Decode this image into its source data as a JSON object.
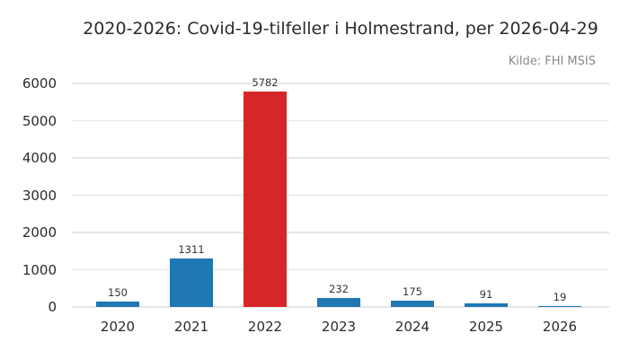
{
  "header": {
    "title": "2020-2026: Covid-19-tilfeller i Holmestrand, per 2026-04-29",
    "source": "Kilde: FHI MSIS"
  },
  "colors": {
    "bar_default": "#1f77b4",
    "bar_highlight": "#d62728",
    "grid": "#e7e7e7",
    "text_dark": "#2b2b2b",
    "text_muted": "#8a8a8a"
  },
  "chart_data": {
    "type": "bar",
    "title": "2020-2026: Covid-19-tilfeller i Holmestrand, per 2026-04-29",
    "source_note": "Kilde: FHI MSIS",
    "categories": [
      "2020",
      "2021",
      "2022",
      "2023",
      "2024",
      "2025",
      "2026"
    ],
    "values": [
      150,
      1311,
      5782,
      232,
      175,
      91,
      19
    ],
    "bar_value_labels": [
      "150",
      "1311",
      "5782",
      "232",
      "175",
      "91",
      "19"
    ],
    "highlight_category": "2022",
    "xlabel": "",
    "ylabel": "",
    "ylim": [
      0,
      6000
    ],
    "yticks": [
      0,
      1000,
      2000,
      3000,
      4000,
      5000,
      6000
    ],
    "grid": "horizontal",
    "legend": "none"
  }
}
